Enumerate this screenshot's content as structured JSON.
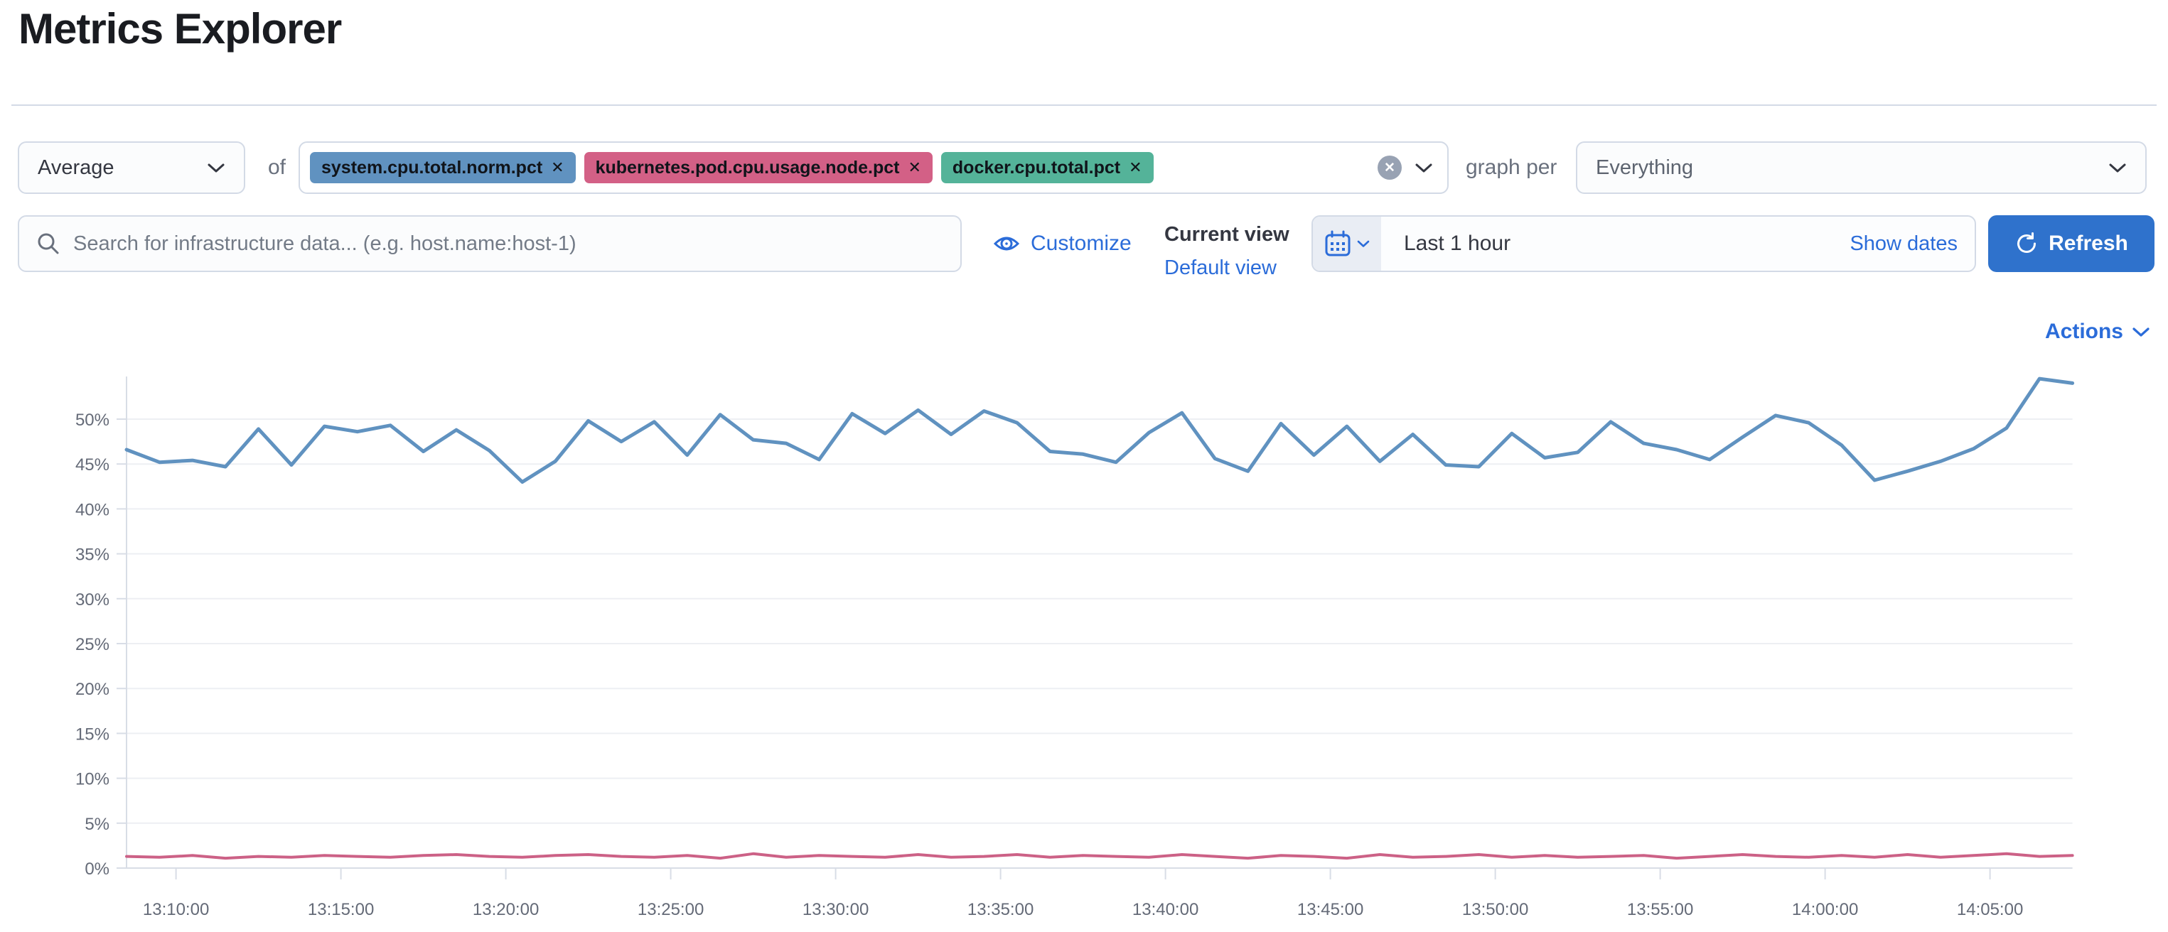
{
  "page": {
    "title": "Metrics Explorer"
  },
  "toolbar": {
    "aggregation": {
      "value": "Average"
    },
    "of_label": "of",
    "metrics": [
      {
        "label": "system.cpu.total.norm.pct",
        "color": "#6092c0"
      },
      {
        "label": "kubernetes.pod.cpu.usage.node.pct",
        "color": "#d36086"
      },
      {
        "label": "docker.cpu.total.pct",
        "color": "#54b399"
      }
    ],
    "clear_icon": "✕",
    "graph_per_label": "graph per",
    "group_by": {
      "value": "Everything"
    }
  },
  "search": {
    "placeholder": "Search for infrastructure data... (e.g. host.name:host-1)"
  },
  "view_controls": {
    "customize_label": "Customize",
    "current_view_label": "Current view",
    "default_view_label": "Default view"
  },
  "time_picker": {
    "value": "Last 1 hour",
    "show_dates_label": "Show dates",
    "refresh_label": "Refresh"
  },
  "chart_header": {
    "actions_label": "Actions"
  },
  "chart_data": {
    "type": "line",
    "title": "",
    "xlabel": "",
    "ylabel": "",
    "grid": "horizontal",
    "legend": "none",
    "ylim": [
      0,
      55
    ],
    "y_ticks": [
      "0%",
      "5%",
      "10%",
      "15%",
      "20%",
      "25%",
      "30%",
      "35%",
      "40%",
      "45%",
      "50%"
    ],
    "x_ticks": [
      "13:10:00",
      "13:15:00",
      "13:20:00",
      "13:25:00",
      "13:30:00",
      "13:35:00",
      "13:40:00",
      "13:45:00",
      "13:50:00",
      "13:55:00",
      "14:00:00",
      "14:05:00"
    ],
    "interval_minutes": 1,
    "series": [
      {
        "name": "system.cpu.total.norm.pct",
        "color": "#6092c0",
        "values": [
          46.6,
          45.2,
          45.4,
          44.7,
          48.9,
          44.9,
          49.2,
          48.6,
          49.3,
          46.4,
          48.8,
          46.5,
          43.0,
          45.3,
          49.8,
          47.5,
          49.7,
          46.0,
          50.5,
          47.7,
          47.3,
          45.5,
          50.6,
          48.4,
          51.0,
          48.3,
          50.9,
          49.6,
          46.4,
          46.1,
          45.2,
          48.5,
          50.7,
          45.6,
          44.2,
          49.5,
          46.0,
          49.2,
          45.3,
          48.3,
          44.9,
          44.7,
          48.4,
          45.7,
          46.3,
          49.7,
          47.3,
          46.6,
          45.5,
          48.0,
          50.4,
          49.6,
          47.1,
          43.2,
          44.2,
          45.3,
          46.7,
          49.0,
          54.5,
          54.0
        ]
      },
      {
        "name": "kubernetes.pod.cpu.usage.node.pct",
        "color": "#cc6186",
        "values": [
          1.3,
          1.2,
          1.4,
          1.1,
          1.3,
          1.2,
          1.4,
          1.3,
          1.2,
          1.4,
          1.5,
          1.3,
          1.2,
          1.4,
          1.5,
          1.3,
          1.2,
          1.4,
          1.1,
          1.6,
          1.2,
          1.4,
          1.3,
          1.2,
          1.5,
          1.2,
          1.3,
          1.5,
          1.2,
          1.4,
          1.3,
          1.2,
          1.5,
          1.3,
          1.1,
          1.4,
          1.3,
          1.1,
          1.5,
          1.2,
          1.3,
          1.5,
          1.2,
          1.4,
          1.2,
          1.3,
          1.4,
          1.1,
          1.3,
          1.5,
          1.3,
          1.2,
          1.4,
          1.2,
          1.5,
          1.2,
          1.4,
          1.6,
          1.3,
          1.4
        ]
      }
    ]
  }
}
